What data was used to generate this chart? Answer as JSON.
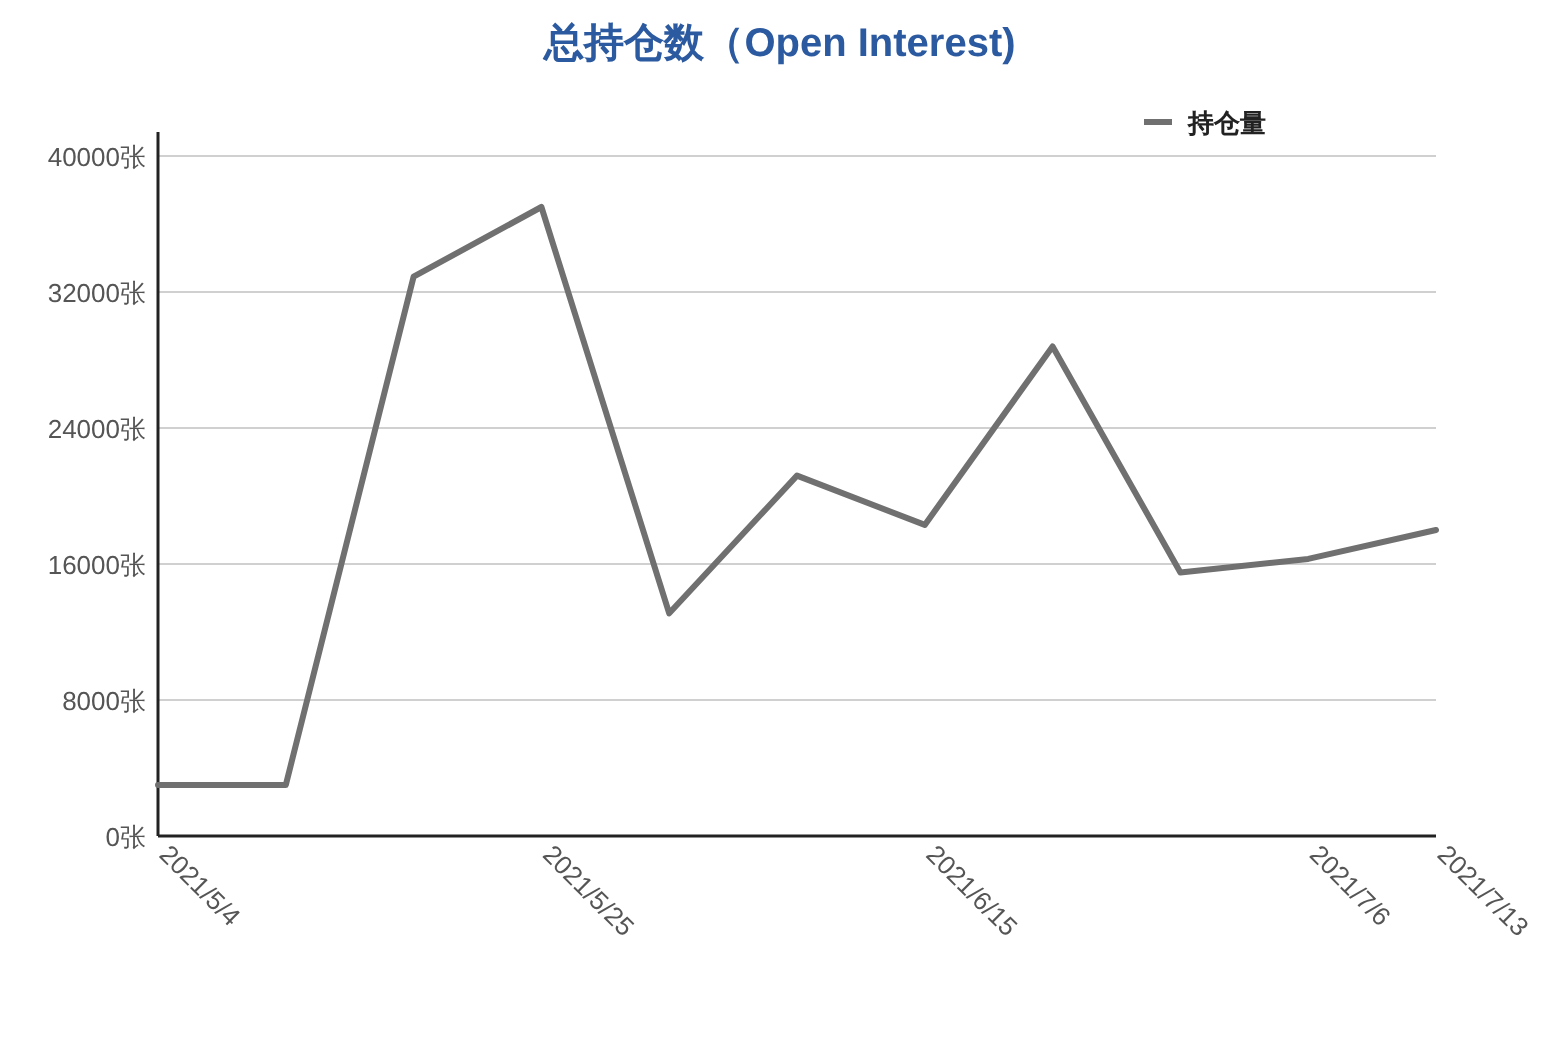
{
  "chart_data": {
    "type": "line",
    "title": "总持仓数（Open Interest)",
    "categories": [
      "2021/5/4",
      null,
      null,
      "2021/5/25",
      null,
      null,
      "2021/6/15",
      null,
      null,
      "2021/7/6",
      "2021/7/13"
    ],
    "series": [
      {
        "name": "持仓量",
        "color": "#707070",
        "values": [
          3000,
          3000,
          32900,
          37000,
          13100,
          21200,
          18300,
          28800,
          15500,
          16300,
          18000
        ]
      }
    ],
    "ylim": [
      0,
      40000
    ],
    "yticks": [
      {
        "value": 0,
        "label": "0张"
      },
      {
        "value": 8000,
        "label": "8000张"
      },
      {
        "value": 16000,
        "label": "16000张"
      },
      {
        "value": 24000,
        "label": "24000张"
      },
      {
        "value": 32000,
        "label": "32000张"
      },
      {
        "value": 40000,
        "label": "40000张"
      }
    ],
    "grid": "y",
    "legend": "top right",
    "marker": "none",
    "line_style": "solid"
  }
}
